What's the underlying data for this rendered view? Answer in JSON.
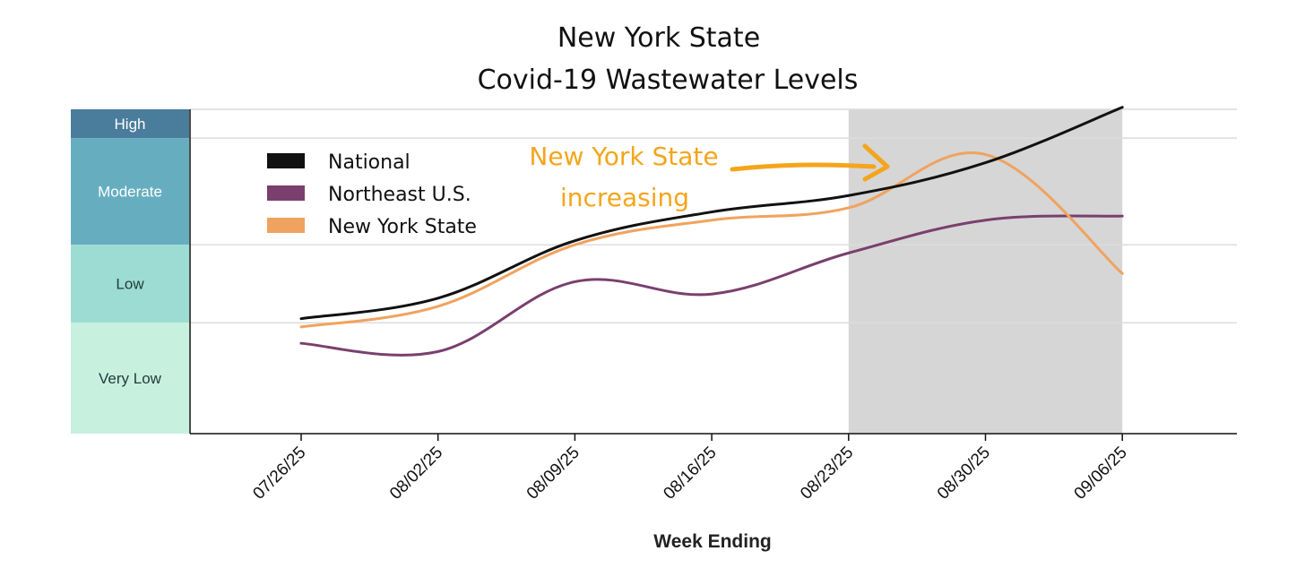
{
  "chart_data": {
    "type": "line",
    "title": [
      "New York State",
      "Covid-19 Wastewater Levels"
    ],
    "xlabel": "Week Ending",
    "x": [
      "07/26/25",
      "08/02/25",
      "08/09/25",
      "08/16/25",
      "08/23/25",
      "08/30/25",
      "09/06/25"
    ],
    "levels": [
      {
        "label": "High",
        "from": 8.0,
        "to": 8.7,
        "color": "#4a7c9b",
        "text_color": "#ffffff"
      },
      {
        "label": "Moderate",
        "from": 5.4,
        "to": 8.0,
        "color": "#66aebf",
        "text_color": "#ffffff"
      },
      {
        "label": "Low",
        "from": 3.5,
        "to": 5.4,
        "color": "#9ddcd2",
        "text_color": "#1f3b3b"
      },
      {
        "label": "Very Low",
        "from": 0.8,
        "to": 3.5,
        "color": "#c8f0de",
        "text_color": "#1f3b3b"
      }
    ],
    "ylim": [
      0.8,
      8.7
    ],
    "gridlines": [
      3.5,
      5.4,
      8.0,
      8.7
    ],
    "series": [
      {
        "name": "National",
        "color": "#111111",
        "values": [
          3.6,
          4.1,
          5.5,
          6.2,
          6.6,
          7.4,
          8.75
        ]
      },
      {
        "name": "Northeast U.S.",
        "color": "#7a3f6e",
        "values": [
          3.0,
          2.8,
          4.5,
          4.2,
          5.2,
          6.0,
          6.1
        ]
      },
      {
        "name": "New York State",
        "color": "#f0a35e",
        "values": [
          3.4,
          3.9,
          5.4,
          6.0,
          6.3,
          7.6,
          4.7
        ]
      }
    ],
    "shaded_region": {
      "from": "08/23/25",
      "to": "09/06/25",
      "color": "#d6d6d6"
    },
    "annotation": {
      "lines": [
        "New York State",
        "increasing"
      ],
      "color": "#f4a51c"
    },
    "legend_position": "top-left"
  }
}
